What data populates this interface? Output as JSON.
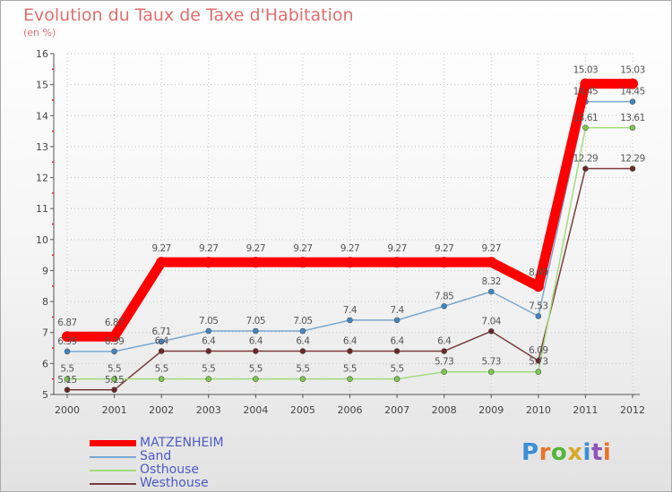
{
  "header": {
    "title": "Evolution du Taux de Taxe d'Habitation",
    "unit": "(en %)"
  },
  "logo": {
    "text": "Proxiti",
    "letter_colors": [
      "#3a8fd6",
      "#e8742a",
      "#57b53a",
      "#d9a72b",
      "#3a8fd6",
      "#8c55b8",
      "#e8742a"
    ]
  },
  "chart_data": {
    "type": "line",
    "title": "Evolution du Taux de Taxe d'Habitation",
    "ylabel": "(en %)",
    "xlabel": "",
    "x": [
      "2000",
      "2001",
      "2002",
      "2003",
      "2004",
      "2005",
      "2006",
      "2007",
      "2008",
      "2009",
      "2010",
      "2011",
      "2012"
    ],
    "ylim": [
      5,
      16
    ],
    "yticks": [
      "5",
      "6",
      "7",
      "8",
      "9",
      "10",
      "11",
      "12",
      "13",
      "14",
      "15",
      "16"
    ],
    "legend_position": "bottom-left",
    "series": [
      {
        "name": "MATZENHEIM",
        "color": "#ff0000",
        "marker": "#ff0000",
        "values": [
          6.87,
          6.87,
          9.27,
          9.27,
          9.27,
          9.27,
          9.27,
          9.27,
          9.27,
          9.27,
          8.49,
          15.03,
          15.03
        ],
        "labels": [
          "6.87",
          "6.87",
          "9.27",
          "9.27",
          "9.27",
          "9.27",
          "9.27",
          "9.27",
          "9.27",
          "9.27",
          "8.49",
          "15.03",
          "15.03"
        ]
      },
      {
        "name": "Sand",
        "color": "#79a7d0",
        "marker": "#3d87c6",
        "values": [
          6.39,
          6.39,
          6.71,
          7.05,
          7.05,
          7.05,
          7.4,
          7.4,
          7.85,
          8.32,
          7.53,
          14.45,
          14.45
        ],
        "labels": [
          "6.39",
          "6.39",
          "6.71",
          "7.05",
          "7.05",
          "7.05",
          "7.4",
          "7.4",
          "7.85",
          "8.32",
          "7.53",
          "14.45",
          "14.45"
        ]
      },
      {
        "name": "Osthouse",
        "color": "#a3dc7d",
        "marker": "#79c94a",
        "values": [
          5.5,
          5.5,
          5.5,
          5.5,
          5.5,
          5.5,
          5.5,
          5.5,
          5.73,
          5.73,
          5.73,
          13.61,
          13.61
        ],
        "labels": [
          "5.5",
          "5.5",
          "5.5",
          "5.5",
          "5.5",
          "5.5",
          "5.5",
          "5.5",
          "5.73",
          "5.73",
          "5.73",
          "13.61",
          "13.61"
        ]
      },
      {
        "name": "Westhouse",
        "color": "#7a3b3b",
        "marker": "#6b2525",
        "values": [
          5.15,
          5.15,
          6.4,
          6.4,
          6.4,
          6.4,
          6.4,
          6.4,
          6.4,
          7.04,
          6.09,
          12.29,
          12.29
        ],
        "labels": [
          "5.15",
          "5.15",
          "6.4",
          "6.4",
          "6.4",
          "6.4",
          "6.4",
          "6.4",
          "6.4",
          "7.04",
          "6.09",
          "12.29",
          "12.29"
        ]
      }
    ]
  }
}
